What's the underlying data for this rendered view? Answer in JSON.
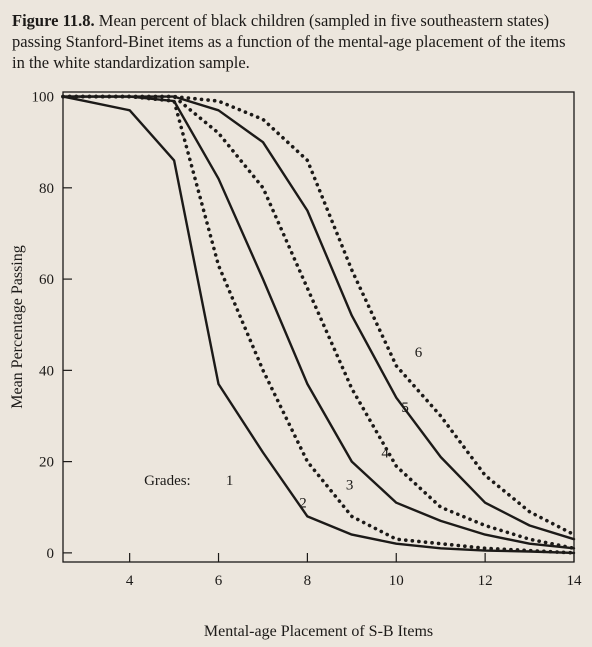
{
  "caption": {
    "figure_label": "Figure 11.8.",
    "text": "Mean percent of black children (sampled in five southeastern states) passing Stanford-Binet items as a function of the mental-age placement of the items in the white standardization sample."
  },
  "chart_data": {
    "type": "line",
    "xlabel": "Mental-age Placement of S-B Items",
    "ylabel": "Mean Percentage Passing",
    "xlim": [
      2.5,
      14
    ],
    "ylim": [
      -2,
      101
    ],
    "xticks": [
      "4",
      "6",
      "8",
      "10",
      "12",
      "14"
    ],
    "yticks": [
      "0",
      "20",
      "40",
      "60",
      "80",
      "100"
    ],
    "grid": false,
    "legend_title": "Grades:",
    "series": [
      {
        "name": "1",
        "style": "solid",
        "x": [
          2.5,
          3,
          4,
          5,
          6,
          7,
          8,
          9,
          10,
          11,
          12,
          13,
          14
        ],
        "y": [
          100,
          99,
          97,
          86,
          37,
          22,
          8,
          4,
          2,
          1,
          0.5,
          0.3,
          0
        ]
      },
      {
        "name": "2",
        "style": "dotted",
        "x": [
          2.5,
          3,
          4,
          5,
          6,
          7,
          8,
          9,
          10,
          11,
          12,
          13,
          14
        ],
        "y": [
          100,
          100,
          100,
          99,
          63,
          40,
          20,
          8,
          3,
          2,
          1,
          0.5,
          0
        ]
      },
      {
        "name": "3",
        "style": "solid",
        "x": [
          2.5,
          3,
          4,
          5,
          6,
          7,
          8,
          9,
          10,
          11,
          12,
          13,
          14
        ],
        "y": [
          100,
          100,
          100,
          99,
          82,
          60,
          37,
          20,
          11,
          7,
          4,
          2,
          1
        ]
      },
      {
        "name": "4",
        "style": "dotted",
        "x": [
          2.5,
          3,
          4,
          5,
          6,
          7,
          8,
          9,
          10,
          11,
          12,
          13,
          14
        ],
        "y": [
          100,
          100,
          100,
          100,
          92,
          80,
          58,
          36,
          19,
          10,
          6,
          3,
          1
        ]
      },
      {
        "name": "5",
        "style": "solid",
        "x": [
          2.5,
          3,
          4,
          5,
          6,
          7,
          8,
          9,
          10,
          11,
          12,
          13,
          14
        ],
        "y": [
          100,
          100,
          100,
          100,
          97,
          90,
          75,
          52,
          34,
          21,
          11,
          6,
          3
        ]
      },
      {
        "name": "6",
        "style": "dotted",
        "x": [
          2.5,
          3,
          4,
          5,
          6,
          7,
          8,
          9,
          10,
          11,
          12,
          13,
          14
        ],
        "y": [
          100,
          100,
          100,
          100,
          99,
          95,
          86,
          62,
          41,
          30,
          17,
          9,
          4
        ]
      }
    ]
  }
}
